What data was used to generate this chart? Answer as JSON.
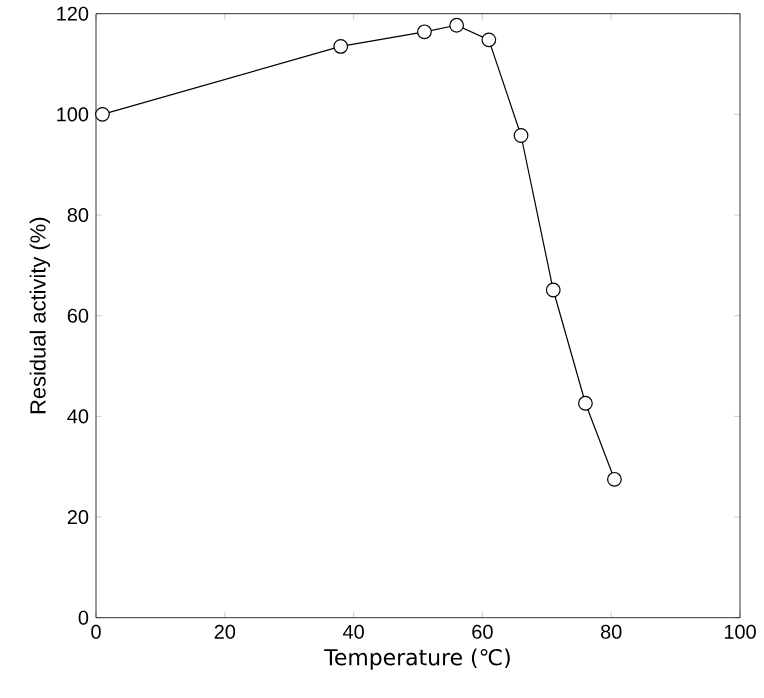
{
  "chart_data": {
    "type": "line",
    "xlabel": "Temperature (℃)",
    "ylabel": "Residual activity (%)",
    "x": [
      1,
      38,
      51,
      56,
      61,
      66,
      71,
      76,
      80.5
    ],
    "series": [
      {
        "color": "#000000",
        "values": [
          100,
          113.5,
          116.4,
          117.7,
          114.8,
          95.8,
          65.1,
          42.6,
          27.5
        ]
      }
    ],
    "xlim": [
      0,
      100
    ],
    "ylim": [
      0,
      120
    ],
    "xticks": [
      0,
      20,
      40,
      60,
      80,
      100
    ],
    "yticks": [
      0,
      20,
      40,
      60,
      80,
      100,
      120
    ],
    "marker": "circle",
    "line_style": "solid"
  }
}
